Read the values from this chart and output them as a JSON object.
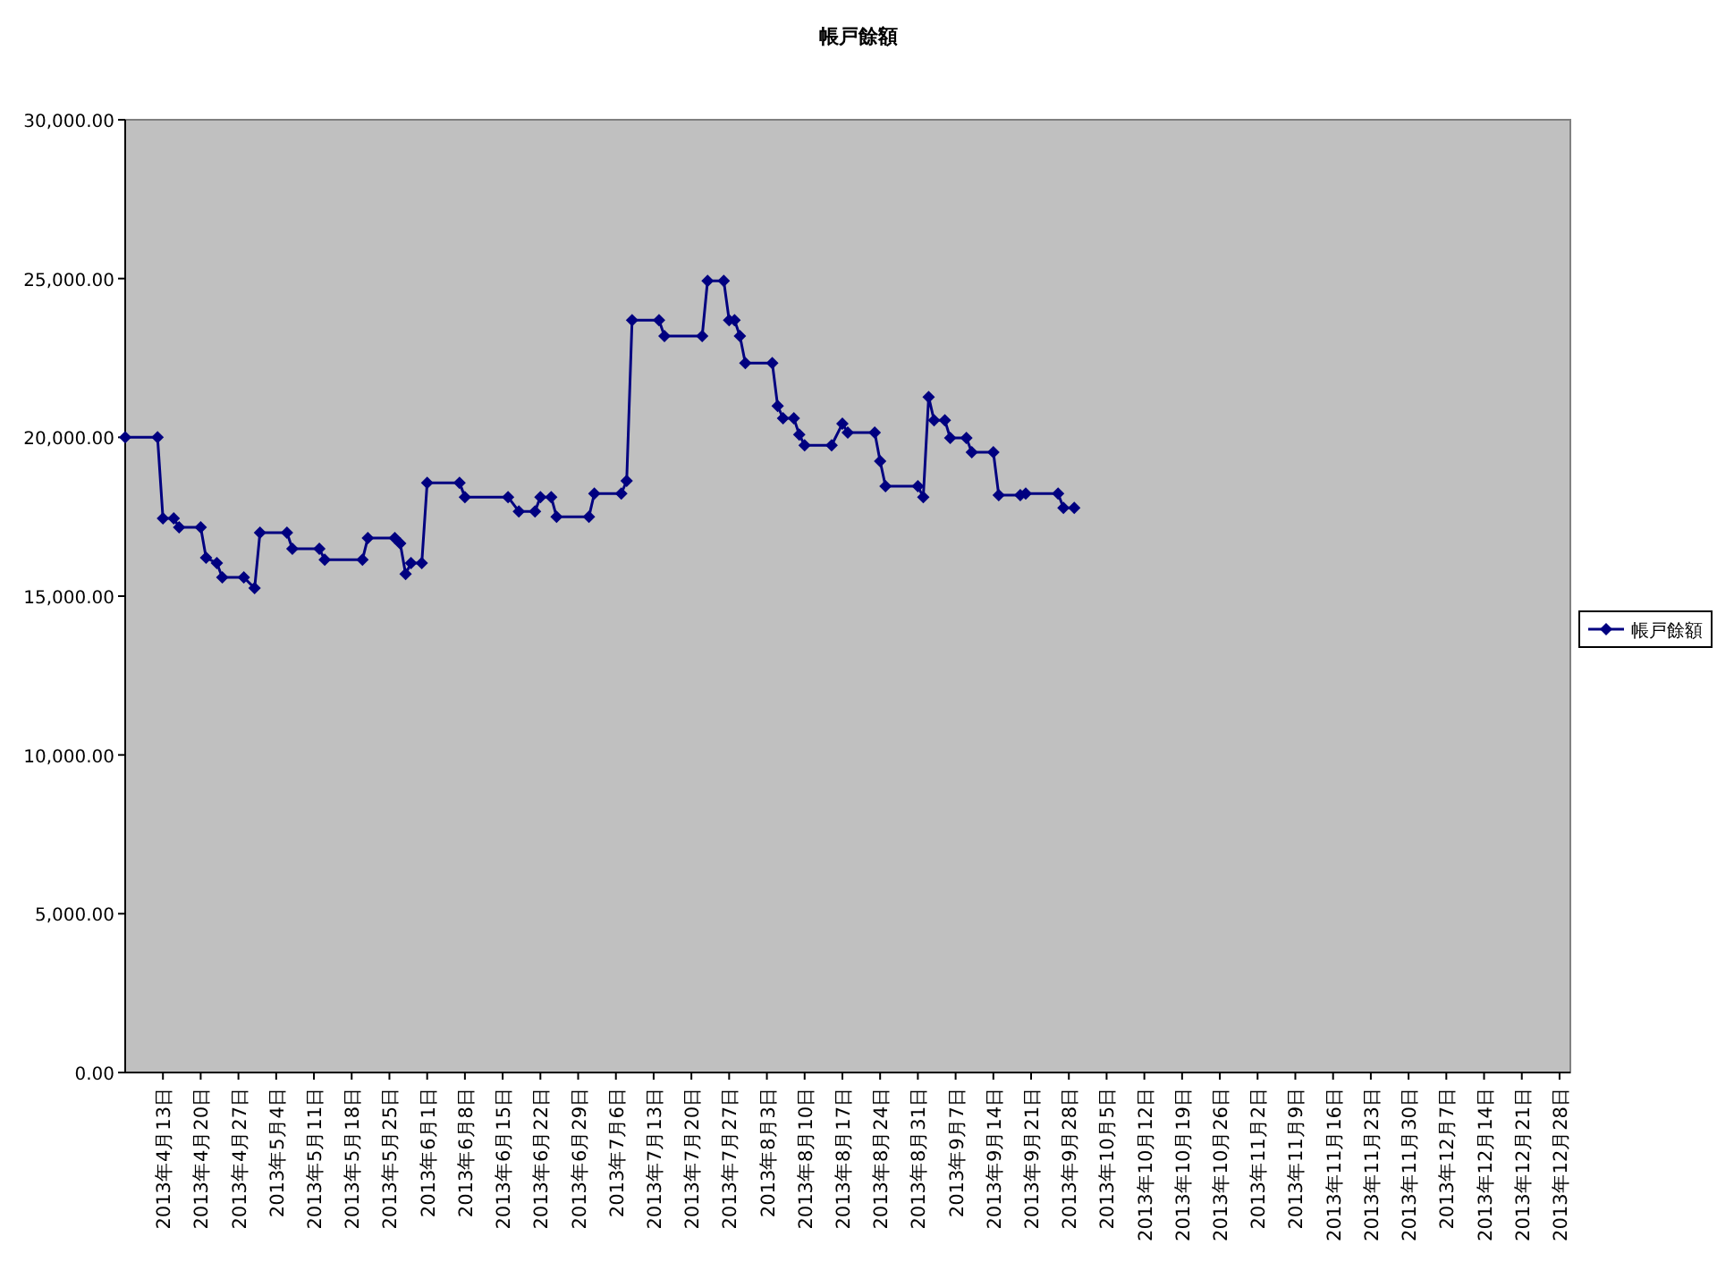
{
  "chart_data": {
    "type": "line",
    "title": "帳戸餘額",
    "legend": "right",
    "marker": "diamond",
    "line_style": "solid",
    "xlim": [
      "2013-04-06",
      "2013-12-30"
    ],
    "xticks": [
      {
        "value": "2013-04-13",
        "label": "2013年4月13日"
      },
      {
        "value": "2013-04-20",
        "label": "2013年4月20日"
      },
      {
        "value": "2013-04-27",
        "label": "2013年4月27日"
      },
      {
        "value": "2013-05-04",
        "label": "2013年5月4日"
      },
      {
        "value": "2013-05-11",
        "label": "2013年5月11日"
      },
      {
        "value": "2013-05-18",
        "label": "2013年5月18日"
      },
      {
        "value": "2013-05-25",
        "label": "2013年5月25日"
      },
      {
        "value": "2013-06-01",
        "label": "2013年6月1日"
      },
      {
        "value": "2013-06-08",
        "label": "2013年6月8日"
      },
      {
        "value": "2013-06-15",
        "label": "2013年6月15日"
      },
      {
        "value": "2013-06-22",
        "label": "2013年6月22日"
      },
      {
        "value": "2013-06-29",
        "label": "2013年6月29日"
      },
      {
        "value": "2013-07-06",
        "label": "2013年7月6日"
      },
      {
        "value": "2013-07-13",
        "label": "2013年7月13日"
      },
      {
        "value": "2013-07-20",
        "label": "2013年7月20日"
      },
      {
        "value": "2013-07-27",
        "label": "2013年7月27日"
      },
      {
        "value": "2013-08-03",
        "label": "2013年8月3日"
      },
      {
        "value": "2013-08-10",
        "label": "2013年8月10日"
      },
      {
        "value": "2013-08-17",
        "label": "2013年8月17日"
      },
      {
        "value": "2013-08-24",
        "label": "2013年8月24日"
      },
      {
        "value": "2013-08-31",
        "label": "2013年8月31日"
      },
      {
        "value": "2013-09-07",
        "label": "2013年9月7日"
      },
      {
        "value": "2013-09-14",
        "label": "2013年9月14日"
      },
      {
        "value": "2013-09-21",
        "label": "2013年9月21日"
      },
      {
        "value": "2013-09-28",
        "label": "2013年9月28日"
      },
      {
        "value": "2013-10-05",
        "label": "2013年10月5日"
      },
      {
        "value": "2013-10-12",
        "label": "2013年10月12日"
      },
      {
        "value": "2013-10-19",
        "label": "2013年10月19日"
      },
      {
        "value": "2013-10-26",
        "label": "2013年10月26日"
      },
      {
        "value": "2013-11-02",
        "label": "2013年11月2日"
      },
      {
        "value": "2013-11-09",
        "label": "2013年11月9日"
      },
      {
        "value": "2013-11-16",
        "label": "2013年11月16日"
      },
      {
        "value": "2013-11-23",
        "label": "2013年11月23日"
      },
      {
        "value": "2013-11-30",
        "label": "2013年11月30日"
      },
      {
        "value": "2013-12-07",
        "label": "2013年12月7日"
      },
      {
        "value": "2013-12-14",
        "label": "2013年12月14日"
      },
      {
        "value": "2013-12-21",
        "label": "2013年12月21日"
      },
      {
        "value": "2013-12-28",
        "label": "2013年12月28日"
      }
    ],
    "ylim": [
      0,
      30000
    ],
    "yticks": [
      {
        "value": 0,
        "label": "0.00"
      },
      {
        "value": 5000,
        "label": "5,000.00"
      },
      {
        "value": 10000,
        "label": "10,000.00"
      },
      {
        "value": 15000,
        "label": "15,000.00"
      },
      {
        "value": 20000,
        "label": "20,000.00"
      },
      {
        "value": 25000,
        "label": "25,000.00"
      },
      {
        "value": 30000,
        "label": "30,000.00"
      }
    ],
    "series": [
      {
        "name": "帳戸餘額",
        "color": "#000080",
        "x": [
          "2013-04-06",
          "2013-04-12",
          "2013-04-13",
          "2013-04-15",
          "2013-04-16",
          "2013-04-20",
          "2013-04-21",
          "2013-04-23",
          "2013-04-24",
          "2013-04-28",
          "2013-04-30",
          "2013-05-01",
          "2013-05-06",
          "2013-05-07",
          "2013-05-12",
          "2013-05-13",
          "2013-05-20",
          "2013-05-21",
          "2013-05-26",
          "2013-05-27",
          "2013-05-28",
          "2013-05-29",
          "2013-05-31",
          "2013-06-01",
          "2013-06-07",
          "2013-06-08",
          "2013-06-16",
          "2013-06-18",
          "2013-06-21",
          "2013-06-22",
          "2013-06-24",
          "2013-06-25",
          "2013-07-01",
          "2013-07-02",
          "2013-07-07",
          "2013-07-08",
          "2013-07-09",
          "2013-07-14",
          "2013-07-15",
          "2013-07-22",
          "2013-07-23",
          "2013-07-26",
          "2013-07-27",
          "2013-07-28",
          "2013-07-29",
          "2013-07-30",
          "2013-08-04",
          "2013-08-05",
          "2013-08-06",
          "2013-08-08",
          "2013-08-09",
          "2013-08-10",
          "2013-08-15",
          "2013-08-17",
          "2013-08-18",
          "2013-08-23",
          "2013-08-24",
          "2013-08-25",
          "2013-08-31",
          "2013-09-01",
          "2013-09-02",
          "2013-09-03",
          "2013-09-05",
          "2013-09-06",
          "2013-09-09",
          "2013-09-10",
          "2013-09-14",
          "2013-09-15",
          "2013-09-19",
          "2013-09-20",
          "2013-09-26",
          "2013-09-27",
          "2013-09-29"
        ],
        "values": [
          20000,
          20000,
          17450,
          17450,
          17170,
          17170,
          16210,
          16040,
          15590,
          15590,
          15250,
          17000,
          17000,
          16490,
          16490,
          16150,
          16150,
          16830,
          16830,
          16660,
          15700,
          16040,
          16040,
          18570,
          18570,
          18120,
          18120,
          17670,
          17670,
          18120,
          18120,
          17500,
          17500,
          18230,
          18230,
          18630,
          23690,
          23690,
          23190,
          23190,
          24930,
          24930,
          23690,
          23690,
          23190,
          22340,
          22340,
          20990,
          20600,
          20600,
          20090,
          19750,
          19750,
          20430,
          20150,
          20150,
          19250,
          18460,
          18460,
          18120,
          21270,
          20540,
          20540,
          19980,
          19980,
          19530,
          19530,
          18180,
          18180,
          18230,
          18230,
          17780,
          17780
        ]
      }
    ]
  }
}
